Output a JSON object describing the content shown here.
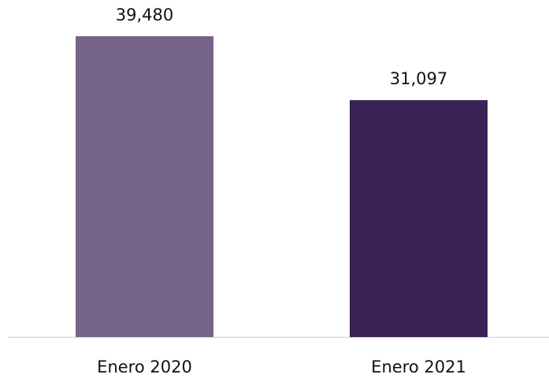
{
  "chart_data": {
    "type": "bar",
    "categories": [
      "Enero 2020",
      "Enero 2021"
    ],
    "values": [
      39480,
      31097
    ],
    "value_labels": [
      "39,480",
      "31,097"
    ],
    "colors": [
      "#756487",
      "#3a2156"
    ],
    "ylim": [
      0,
      40000
    ]
  }
}
